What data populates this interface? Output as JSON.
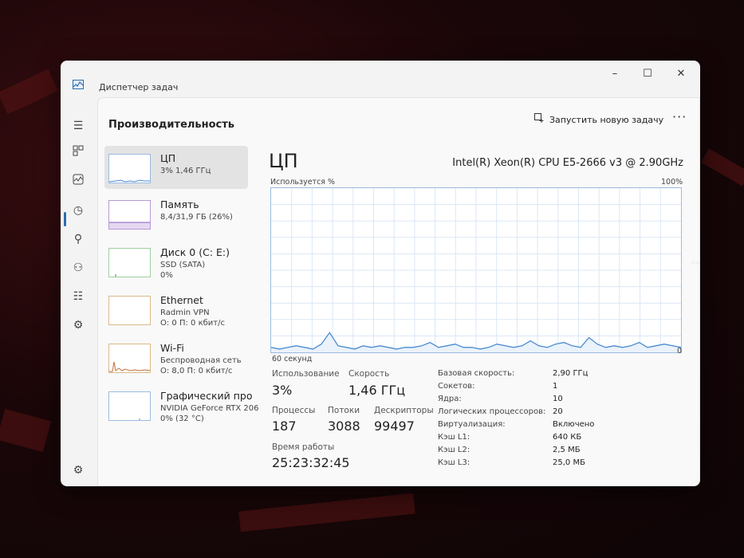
{
  "window": {
    "title": "Диспетчер задач",
    "minimize": "–",
    "maximize": "☐",
    "close": "✕"
  },
  "header": {
    "section_title": "Производительность",
    "run_task_label": "Запустить новую задачу",
    "more_label": "···"
  },
  "nav_icons": [
    "menu-icon",
    "processes-icon",
    "performance-icon",
    "history-icon",
    "startup-icon",
    "users-icon",
    "details-icon",
    "services-icon",
    "settings-icon"
  ],
  "devices": [
    {
      "name": "ЦП",
      "line1": "3% 1,46 ГГц",
      "line2": ""
    },
    {
      "name": "Память",
      "line1": "8,4/31,9 ГБ (26%)",
      "line2": ""
    },
    {
      "name": "Диск 0 (C: E:)",
      "line1": "SSD (SATA)",
      "line2": "0%"
    },
    {
      "name": "Ethernet",
      "line1": "Radmin VPN",
      "line2": "О: 0 П: 0 кбит/с"
    },
    {
      "name": "Wi-Fi",
      "line1": "Беспроводная сеть",
      "line2": "О: 8,0 П: 0 кбит/с"
    },
    {
      "name": "Графический про",
      "line1": "NVIDIA GeForce RTX 206",
      "line2": "0% (32 °C)"
    }
  ],
  "main": {
    "title": "ЦП",
    "cpu_name": "Intel(R) Xeon(R) CPU E5-2666 v3 @ 2.90GHz",
    "graph_label": "Используется %",
    "graph_max": "100%",
    "graph_time": "60 секунд",
    "graph_min": "0"
  },
  "stats": {
    "usage_label": "Использование",
    "usage_value": "3%",
    "speed_label": "Скорость",
    "speed_value": "1,46 ГГц",
    "processes_label": "Процессы",
    "processes_value": "187",
    "threads_label": "Потоки",
    "threads_value": "3088",
    "handles_label": "Дескрипторы",
    "handles_value": "99497",
    "uptime_label": "Время работы",
    "uptime_value": "25:23:32:45"
  },
  "details": [
    {
      "label": "Базовая скорость:",
      "value": "2,90 ГГц"
    },
    {
      "label": "Сокетов:",
      "value": "1"
    },
    {
      "label": "Ядра:",
      "value": "10"
    },
    {
      "label": "Логических процессоров:",
      "value": "20"
    },
    {
      "label": "Виртуализация:",
      "value": "Включено"
    },
    {
      "label": "Кэш L1:",
      "value": "640 КБ"
    },
    {
      "label": "Кэш L2:",
      "value": "2,5 МБ"
    },
    {
      "label": "Кэш L3:",
      "value": "25,0 МБ"
    }
  ],
  "cpu_usage_history": [
    3,
    2,
    3,
    4,
    3,
    2,
    5,
    12,
    4,
    3,
    2,
    4,
    3,
    4,
    3,
    2,
    3,
    3,
    4,
    6,
    3,
    4,
    5,
    3,
    3,
    2,
    3,
    5,
    4,
    3,
    4,
    7,
    4,
    3,
    5,
    6,
    4,
    3,
    9,
    5,
    3,
    4,
    3,
    4,
    6,
    3,
    4,
    5,
    4,
    3
  ],
  "colors": {
    "accent": "#2b6cb0",
    "graph_line": "#4a8bd0",
    "graph_grid": "#dbe7f5"
  }
}
